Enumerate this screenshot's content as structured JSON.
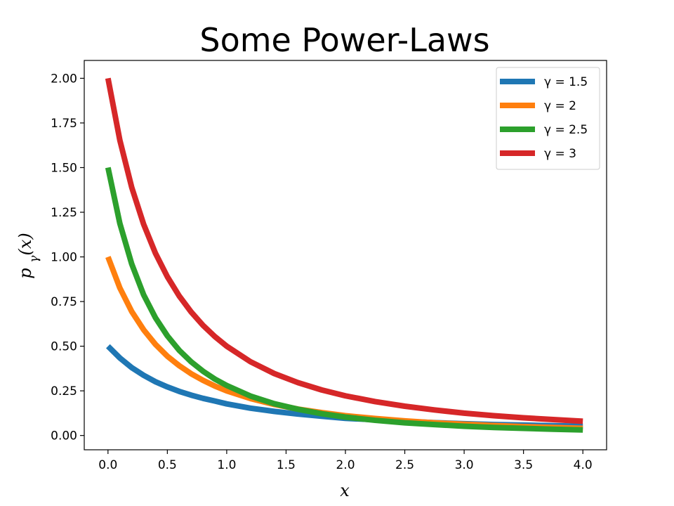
{
  "chart_data": {
    "type": "line",
    "title": "Some Power-Laws",
    "xlabel": "x",
    "ylabel": "pγ(x)",
    "xlim": [
      -0.2,
      4.2
    ],
    "ylim": [
      -0.08,
      2.1
    ],
    "xticks": [
      "0.0",
      "0.5",
      "1.0",
      "1.5",
      "2.0",
      "2.5",
      "3.0",
      "3.5",
      "4.0"
    ],
    "yticks": [
      "0.00",
      "0.25",
      "0.50",
      "0.75",
      "1.00",
      "1.25",
      "1.50",
      "1.75",
      "2.00"
    ],
    "grid": false,
    "legend_position": "top-right",
    "x": [
      0,
      0.1,
      0.2,
      0.3,
      0.4,
      0.5,
      0.6,
      0.7,
      0.8,
      0.9,
      1.0,
      1.2,
      1.4,
      1.6,
      1.8,
      2.0,
      2.25,
      2.5,
      2.75,
      3.0,
      3.25,
      3.5,
      3.75,
      4.0
    ],
    "series": [
      {
        "name": "γ = 1.5",
        "color": "#1f77b4",
        "values": [
          0.5,
          0.434,
          0.38,
          0.337,
          0.301,
          0.272,
          0.247,
          0.226,
          0.208,
          0.193,
          0.177,
          0.153,
          0.135,
          0.12,
          0.108,
          0.096,
          0.088,
          0.079,
          0.072,
          0.066,
          0.061,
          0.058,
          0.055,
          0.052
        ]
      },
      {
        "name": "γ = 2",
        "color": "#ff7f0e",
        "values": [
          1.0,
          0.826,
          0.694,
          0.592,
          0.51,
          0.444,
          0.391,
          0.346,
          0.309,
          0.277,
          0.25,
          0.207,
          0.174,
          0.148,
          0.128,
          0.111,
          0.095,
          0.082,
          0.071,
          0.063,
          0.056,
          0.05,
          0.045,
          0.04
        ]
      },
      {
        "name": "γ = 2.5",
        "color": "#2ca02c",
        "values": [
          1.5,
          1.187,
          0.96,
          0.788,
          0.659,
          0.558,
          0.477,
          0.413,
          0.36,
          0.316,
          0.28,
          0.221,
          0.178,
          0.147,
          0.122,
          0.103,
          0.085,
          0.071,
          0.061,
          0.052,
          0.045,
          0.04,
          0.035,
          0.031
        ]
      },
      {
        "name": "γ = 3",
        "color": "#d62728",
        "values": [
          2.0,
          1.653,
          1.389,
          1.183,
          1.02,
          0.889,
          0.781,
          0.692,
          0.617,
          0.554,
          0.5,
          0.413,
          0.347,
          0.296,
          0.255,
          0.222,
          0.19,
          0.164,
          0.143,
          0.125,
          0.111,
          0.099,
          0.089,
          0.08
        ]
      }
    ]
  }
}
